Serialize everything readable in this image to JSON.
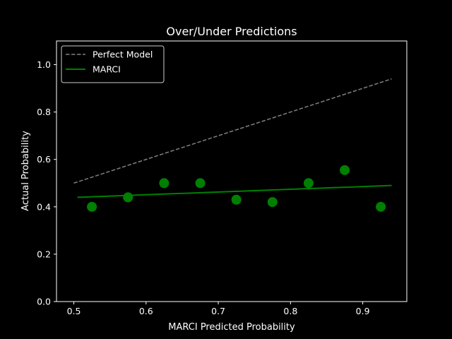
{
  "chart_data": {
    "type": "scatter",
    "title": "Over/Under Predictions",
    "xlabel": "MARCI Predicted Probability",
    "ylabel": "Actual Probability",
    "xlim": [
      0.476,
      0.961
    ],
    "ylim": [
      0.0,
      1.1
    ],
    "xticks": [
      "0.5",
      "0.6",
      "0.7",
      "0.8",
      "0.9"
    ],
    "yticks": [
      "0.0",
      "0.2",
      "0.4",
      "0.6",
      "0.8",
      "1.0"
    ],
    "grid": false,
    "legend_placement": "top-left",
    "series": [
      {
        "name": "Perfect Model",
        "kind": "line",
        "style": "dashed",
        "color": "#808080",
        "x": [
          0.5,
          0.94
        ],
        "y": [
          0.5,
          0.94
        ]
      },
      {
        "name": "MARCI",
        "kind": "line",
        "style": "solid",
        "color": "#008000",
        "x": [
          0.505,
          0.94
        ],
        "y": [
          0.44,
          0.49
        ]
      },
      {
        "kind": "scatter",
        "color": "#008000",
        "x": [
          0.525,
          0.575,
          0.625,
          0.675,
          0.725,
          0.775,
          0.825,
          0.875,
          0.925
        ],
        "y": [
          0.4,
          0.44,
          0.5,
          0.5,
          0.43,
          0.42,
          0.5,
          0.555,
          0.4
        ]
      }
    ]
  }
}
